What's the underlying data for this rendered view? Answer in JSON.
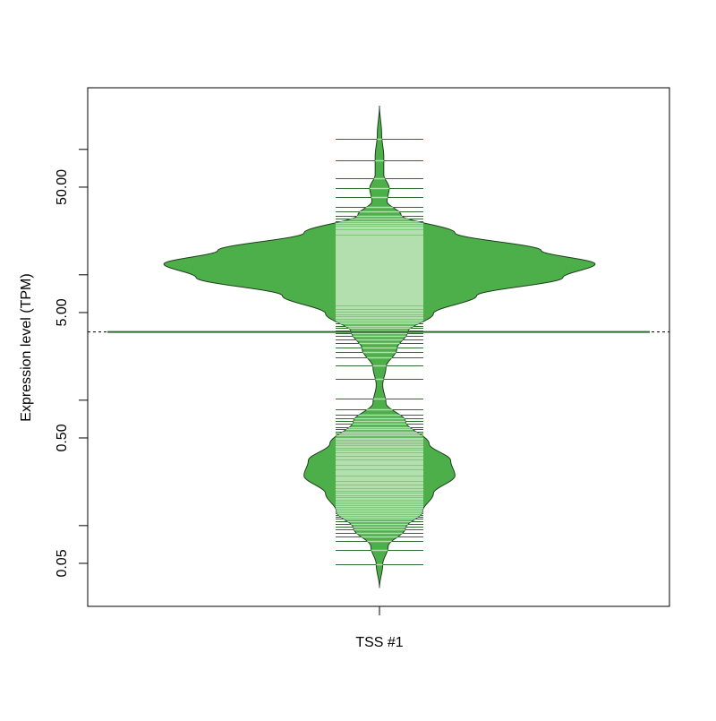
{
  "chart_data": {
    "type": "beanplot",
    "title": "",
    "xlabel": "",
    "ylabel": "Expression level (TPM)",
    "y_scale": "log",
    "ylim": [
      0.0227,
      310
    ],
    "y_ticks": [
      0.05,
      0.1,
      0.5,
      1,
      5,
      10,
      50,
      100
    ],
    "y_tick_labels": [
      {
        "value": 0.05,
        "label": "0.05"
      },
      {
        "value": 0.5,
        "label": "0.50"
      },
      {
        "value": 5,
        "label": "5.00"
      },
      {
        "value": 50,
        "label": "50.00"
      }
    ],
    "categories": [
      "TSS #1"
    ],
    "overall_mean_line": 3.5,
    "bean_mean": 3.5,
    "colors": {
      "bean": "#4daf4a",
      "beanline_dark": "#2f6b2e",
      "beanline_light": "#b3deae",
      "outline": "#1e3f1e"
    },
    "density_profile": [
      [
        223,
        0
      ],
      [
        132,
        0.01
      ],
      [
        87.5,
        0.02
      ],
      [
        63,
        0.02
      ],
      [
        49,
        0.045
      ],
      [
        38.5,
        0.035
      ],
      [
        30,
        0.1
      ],
      [
        21.6,
        0.35
      ],
      [
        15.6,
        0.75
      ],
      [
        12.2,
        1.0
      ],
      [
        9.5,
        0.85
      ],
      [
        6.8,
        0.45
      ],
      [
        4.9,
        0.25
      ],
      [
        3.5,
        0.13
      ],
      [
        2.55,
        0.08
      ],
      [
        1.83,
        0.03
      ],
      [
        1.32,
        0.015
      ],
      [
        0.95,
        0.03
      ],
      [
        0.68,
        0.12
      ],
      [
        0.45,
        0.23
      ],
      [
        0.33,
        0.33
      ],
      [
        0.25,
        0.35
      ],
      [
        0.18,
        0.25
      ],
      [
        0.13,
        0.2
      ],
      [
        0.095,
        0.12
      ],
      [
        0.068,
        0.04
      ],
      [
        0.049,
        0.015
      ],
      [
        0.032,
        0
      ]
    ]
  }
}
